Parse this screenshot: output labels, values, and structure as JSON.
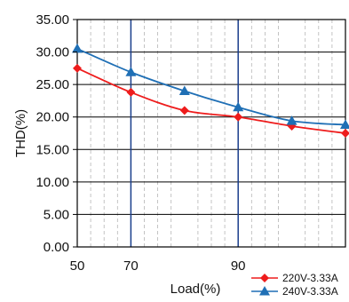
{
  "chart_data": {
    "type": "line",
    "xlabel": "Load(%)",
    "ylabel": "THD(%)",
    "xlim": [
      50,
      100
    ],
    "ylim": [
      0,
      35
    ],
    "x_ticks": [
      "50",
      "70",
      "90"
    ],
    "y_ticks": [
      "0.00",
      "5.00",
      "10.00",
      "15.00",
      "20.00",
      "25.00",
      "30.00",
      "35.00"
    ],
    "grid": true,
    "legend_position": "bottom-right",
    "series": [
      {
        "name": "220V-3.33A",
        "color": "#ee1c1c",
        "marker": "diamond",
        "x": [
          50,
          60,
          70,
          80,
          90,
          100
        ],
        "y": [
          27.5,
          23.8,
          21.0,
          20.0,
          18.6,
          17.5
        ]
      },
      {
        "name": "240V-3.33A",
        "color": "#1f6fb5",
        "marker": "triangle",
        "x": [
          50,
          60,
          70,
          80,
          90,
          100
        ],
        "y": [
          30.5,
          26.9,
          24.0,
          21.5,
          19.4,
          18.8
        ]
      }
    ]
  }
}
